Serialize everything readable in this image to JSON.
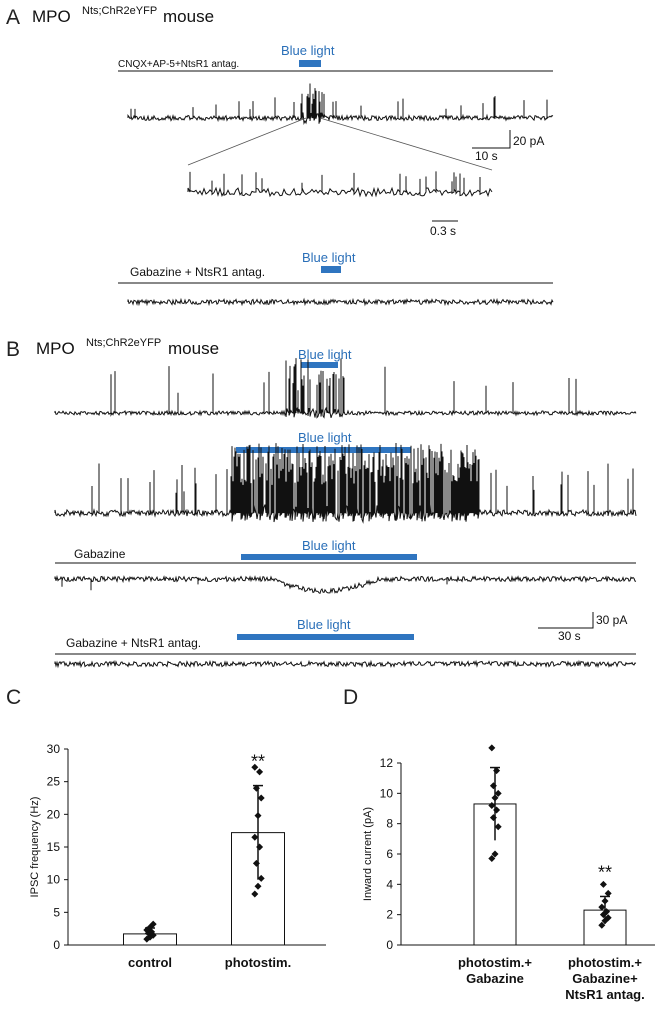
{
  "panel_a": {
    "letter": "A",
    "title_main": "MPO",
    "title_sup": "Nts;ChR2eYFP",
    "title_tail": "mouse",
    "condition1": "CNQX+AP-5+NtsR1 antag.",
    "light_label1": "Blue light",
    "scale_y": "20 pA",
    "scale_x": "10 s",
    "inset_scale_x": "0.3 s",
    "condition2": "Gabazine + NtsR1 antag.",
    "light_label2": "Blue light"
  },
  "panel_b": {
    "letter": "B",
    "title_main": "MPO",
    "title_sup": "Nts;ChR2eYFP",
    "title_tail": "mouse",
    "light_label1": "Blue light",
    "light_label2": "Blue light",
    "condition3": "Gabazine",
    "light_label3": "Blue light",
    "condition4": "Gabazine + NtsR1 antag.",
    "light_label4": "Blue light",
    "scale_y": "30 pA",
    "scale_x": "30 s"
  },
  "colors": {
    "blue_light": "#2f75c0",
    "trace": "#111111"
  },
  "chart_data": [
    {
      "panel": "C",
      "type": "bar",
      "ylabel": "IPSC frequency (Hz)",
      "xlabel": "",
      "ylim": [
        0,
        30
      ],
      "yticks": [
        0,
        5,
        10,
        15,
        20,
        25,
        30
      ],
      "categories": [
        "control",
        "photostim."
      ],
      "values": [
        1.7,
        17.2
      ],
      "errors": [
        0.9,
        7.2
      ],
      "points": [
        [
          0.9,
          1.2,
          1.5,
          1.8,
          2.0,
          2.3,
          2.7,
          3.2
        ],
        [
          7.8,
          9.0,
          10.2,
          12.5,
          15.0,
          16.5,
          19.8,
          22.5,
          24.0,
          26.5,
          27.2
        ]
      ],
      "significance": [
        "",
        "**"
      ]
    },
    {
      "panel": "D",
      "type": "bar",
      "ylabel": "Inward current (pA)",
      "xlabel": "",
      "ylim": [
        0,
        12
      ],
      "yticks": [
        0,
        2,
        4,
        6,
        8,
        10,
        12
      ],
      "categories": [
        "photostim.+\nGabazine",
        "photostim.+\nGabazine+\nNtsR1 antag."
      ],
      "values": [
        9.3,
        2.3
      ],
      "errors": [
        2.4,
        0.9
      ],
      "points": [
        [
          5.7,
          6.0,
          7.8,
          8.4,
          8.9,
          9.2,
          9.7,
          10.0,
          10.5,
          11.5,
          13.0
        ],
        [
          1.3,
          1.6,
          1.8,
          2.0,
          2.2,
          2.5,
          2.9,
          3.4,
          4.0
        ]
      ],
      "significance": [
        "",
        "**"
      ]
    }
  ]
}
